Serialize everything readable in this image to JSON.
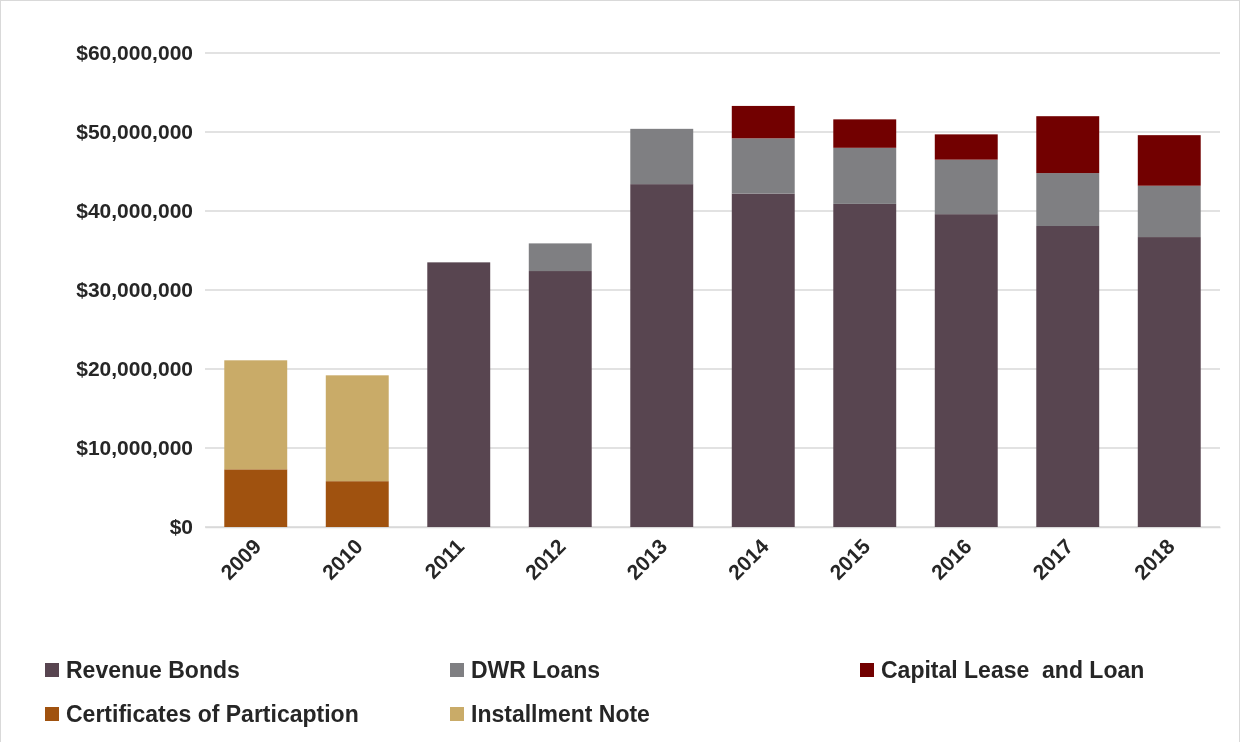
{
  "chart_data": {
    "type": "bar",
    "stacked": true,
    "categories": [
      "2009",
      "2010",
      "2011",
      "2012",
      "2013",
      "2014",
      "2015",
      "2016",
      "2017",
      "2018"
    ],
    "series": [
      {
        "name": "Revenue Bonds",
        "color": "#584550",
        "values": [
          null,
          null,
          33500000,
          32400000,
          43400000,
          42200000,
          40900000,
          39600000,
          38100000,
          36700000
        ]
      },
      {
        "name": "DWR Loans",
        "color": "#7f7f82",
        "values": [
          null,
          null,
          null,
          3500000,
          7000000,
          7000000,
          7100000,
          6900000,
          6700000,
          6500000
        ]
      },
      {
        "name": "Capital Lease  and Loan",
        "color": "#720000",
        "values": [
          null,
          null,
          null,
          null,
          null,
          4100000,
          3600000,
          3200000,
          7200000,
          6400000
        ]
      },
      {
        "name": "Certificates of Particaption",
        "color": "#a0520f",
        "values": [
          7300000,
          5800000,
          null,
          null,
          null,
          null,
          null,
          null,
          null,
          null
        ]
      },
      {
        "name": "Installment Note",
        "color": "#c9ab68",
        "values": [
          13800000,
          13400000,
          null,
          null,
          null,
          null,
          null,
          null,
          null,
          null
        ]
      }
    ],
    "ylim": [
      0,
      60000000
    ],
    "yticks": [
      {
        "value": 0,
        "label": "$0"
      },
      {
        "value": 10000000,
        "label": "$10,000,000"
      },
      {
        "value": 20000000,
        "label": "$20,000,000"
      },
      {
        "value": 30000000,
        "label": "$30,000,000"
      },
      {
        "value": 40000000,
        "label": "$40,000,000"
      },
      {
        "value": 50000000,
        "label": "$50,000,000"
      },
      {
        "value": 60000000,
        "label": "$60,000,000"
      }
    ],
    "grid": "y",
    "legend": "bottom"
  }
}
